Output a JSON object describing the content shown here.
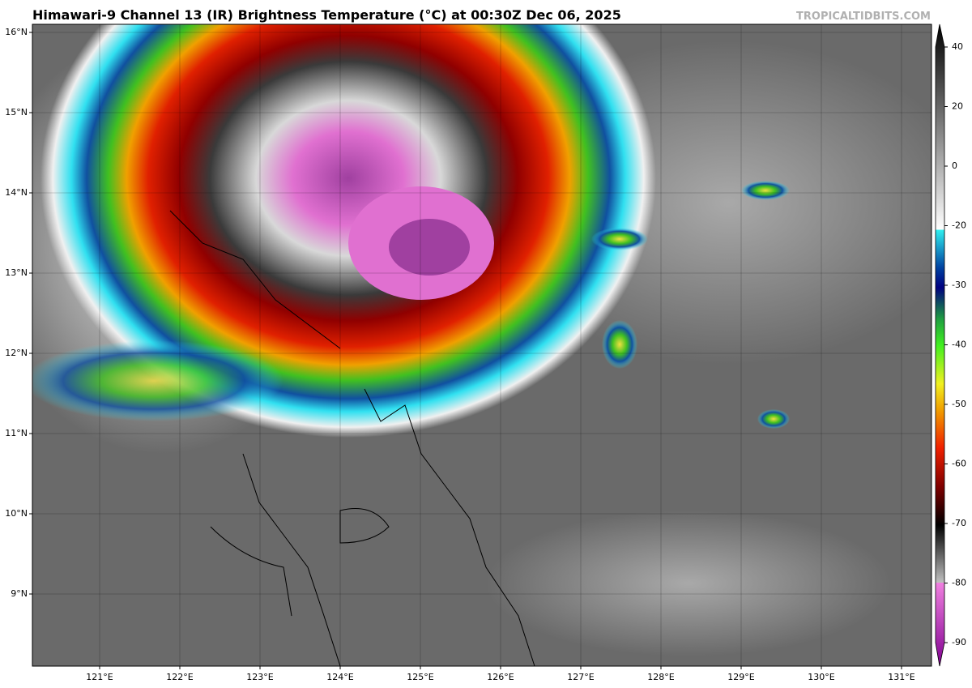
{
  "header": {
    "title": "Himawari-9 Channel 13 (IR) Brightness Temperature (°C) at 00:30Z Dec 06, 2025",
    "source": "TROPICALTIDBITS.COM"
  },
  "map": {
    "lat_labels": [
      "16°N",
      "15°N",
      "14°N",
      "13°N",
      "12°N",
      "11°N",
      "10°N",
      "9°N"
    ],
    "lon_labels": [
      "121°E",
      "122°E",
      "123°E",
      "124°E",
      "125°E",
      "126°E",
      "127°E",
      "128°E",
      "129°E",
      "130°E",
      "131°E"
    ]
  },
  "colorbar": {
    "ticks": [
      40,
      20,
      0,
      -20,
      -30,
      -40,
      -50,
      -60,
      -70,
      -80,
      -90
    ]
  }
}
